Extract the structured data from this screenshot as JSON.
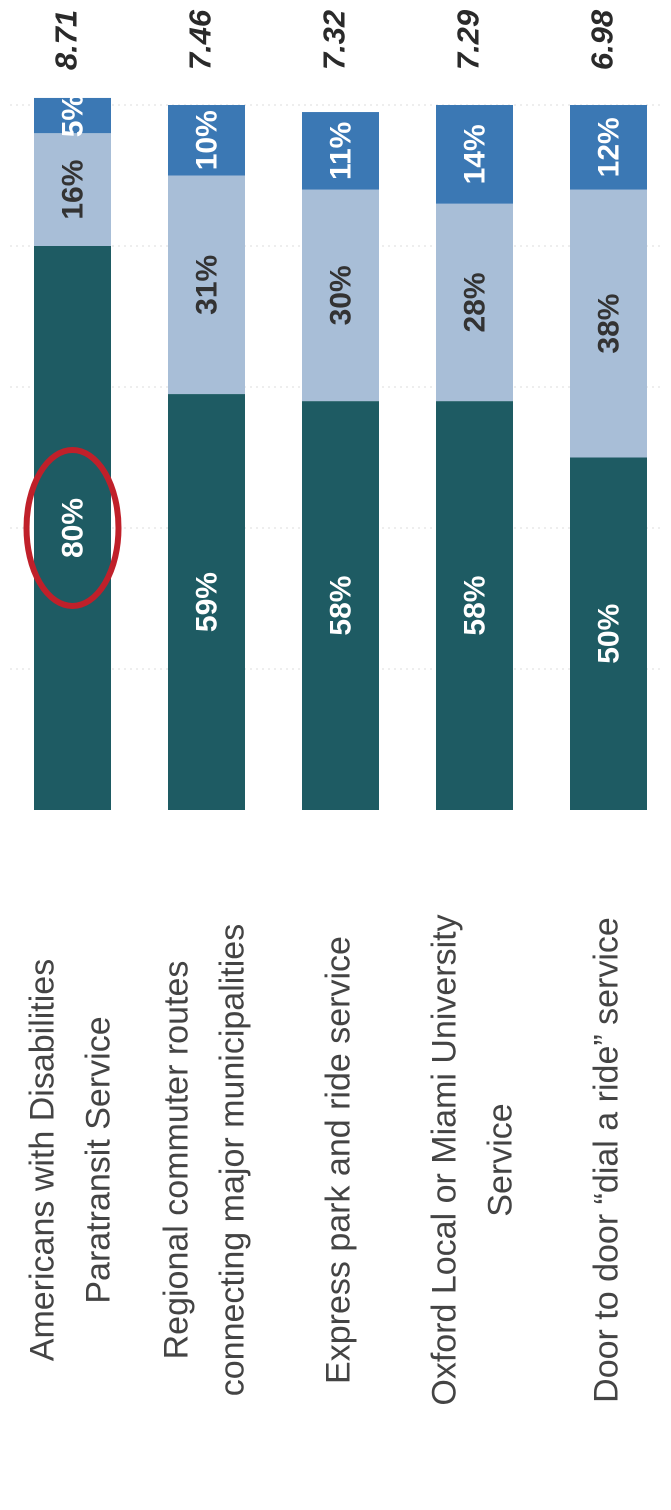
{
  "chart_data": {
    "type": "stacked-bar",
    "orientation": "horizontal",
    "categories": [
      [
        "Americans with Disabilities",
        "Paratransit Service"
      ],
      [
        "Regional commuter routes",
        "connecting major municipalities"
      ],
      [
        "Express park and ride service"
      ],
      [
        "Oxford Local or Miami University",
        "Service"
      ],
      [
        "Door to door “dial a ride” service"
      ]
    ],
    "series": [
      {
        "color": "#1e5b63",
        "values": [
          80,
          59,
          58,
          58,
          50
        ],
        "value_labels": [
          "80%",
          "59%",
          "58%",
          "58%",
          "50%"
        ]
      },
      {
        "color": "#a8bed7",
        "values": [
          16,
          31,
          30,
          28,
          38
        ],
        "value_labels": [
          "16%",
          "31%",
          "30%",
          "28%",
          "38%"
        ]
      },
      {
        "color": "#3b78b4",
        "values": [
          5,
          10,
          11,
          14,
          12
        ],
        "value_labels": [
          "5%",
          "10%",
          "11%",
          "14%",
          "12%"
        ]
      }
    ],
    "scores": [
      8.71,
      7.46,
      7.32,
      7.29,
      6.98
    ],
    "xlim": [
      0,
      100
    ]
  }
}
